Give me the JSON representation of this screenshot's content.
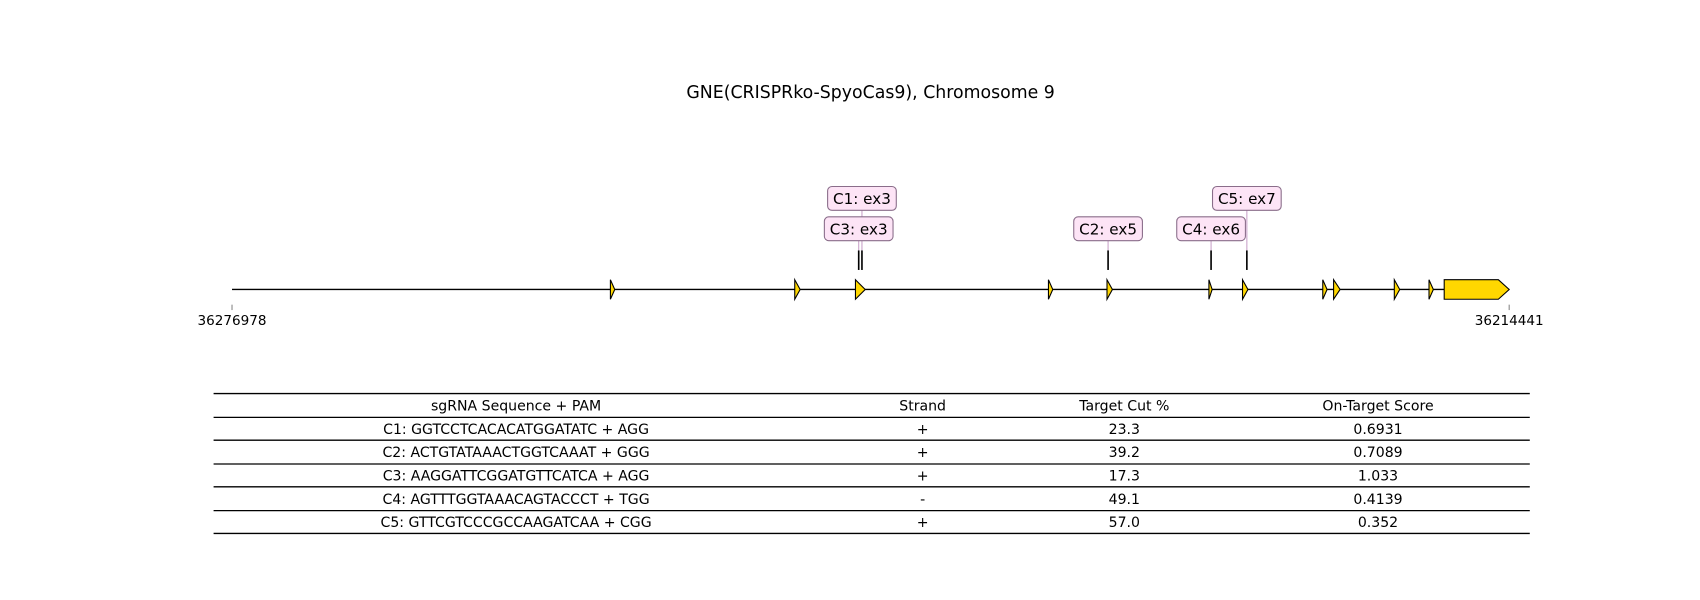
{
  "title": "GNE(CRISPRko-SpyoCas9), Chromosome 9",
  "axis": {
    "start": 36276978,
    "end": 36214441
  },
  "exons": [
    {
      "start": 36258450,
      "end": 36258237
    },
    {
      "start": 36249424,
      "end": 36249159
    },
    {
      "start": 36246451,
      "end": 36245973
    },
    {
      "start": 36237001,
      "end": 36236789
    },
    {
      "start": 36234134,
      "end": 36233869
    },
    {
      "start": 36229144,
      "end": 36228985
    },
    {
      "start": 36227498,
      "end": 36227233
    },
    {
      "start": 36223569,
      "end": 36223357
    },
    {
      "start": 36223039,
      "end": 36222720
    },
    {
      "start": 36220066,
      "end": 36219800
    },
    {
      "start": 36218367,
      "end": 36218154
    },
    {
      "start": 36217623,
      "end": 36214441
    }
  ],
  "cuts": [
    {
      "label": "C1: ex3",
      "position": 36246133
    },
    {
      "label": "C2: ex5",
      "position": 36234081
    },
    {
      "label": "C3: ex3",
      "position": 36246292
    },
    {
      "label": "C4: ex6",
      "position": 36229038
    },
    {
      "label": "C5: ex7",
      "position": 36227286
    }
  ],
  "table": {
    "header": [
      "sgRNA Sequence + PAM",
      "Strand",
      "Target Cut %",
      "On-Target Score"
    ],
    "rows": [
      [
        "C1: GGTCCTCACACATGGATATC + AGG",
        "+",
        "23.3",
        "0.6931"
      ],
      [
        "C2: ACTGTATAAACTGGTCAAAT + GGG",
        "+",
        "39.2",
        "0.7089"
      ],
      [
        "C3: AAGGATTCGGATGTTCATCA + AGG",
        "+",
        "17.3",
        "1.033"
      ],
      [
        "C4: AGTTTGGTAAACAGTACCCT + TGG",
        "-",
        "49.1",
        "0.4139"
      ],
      [
        "C5: GTTCGTCCCGCCAAGATCAA + CGG",
        "+",
        "57.0",
        "0.352"
      ]
    ]
  }
}
